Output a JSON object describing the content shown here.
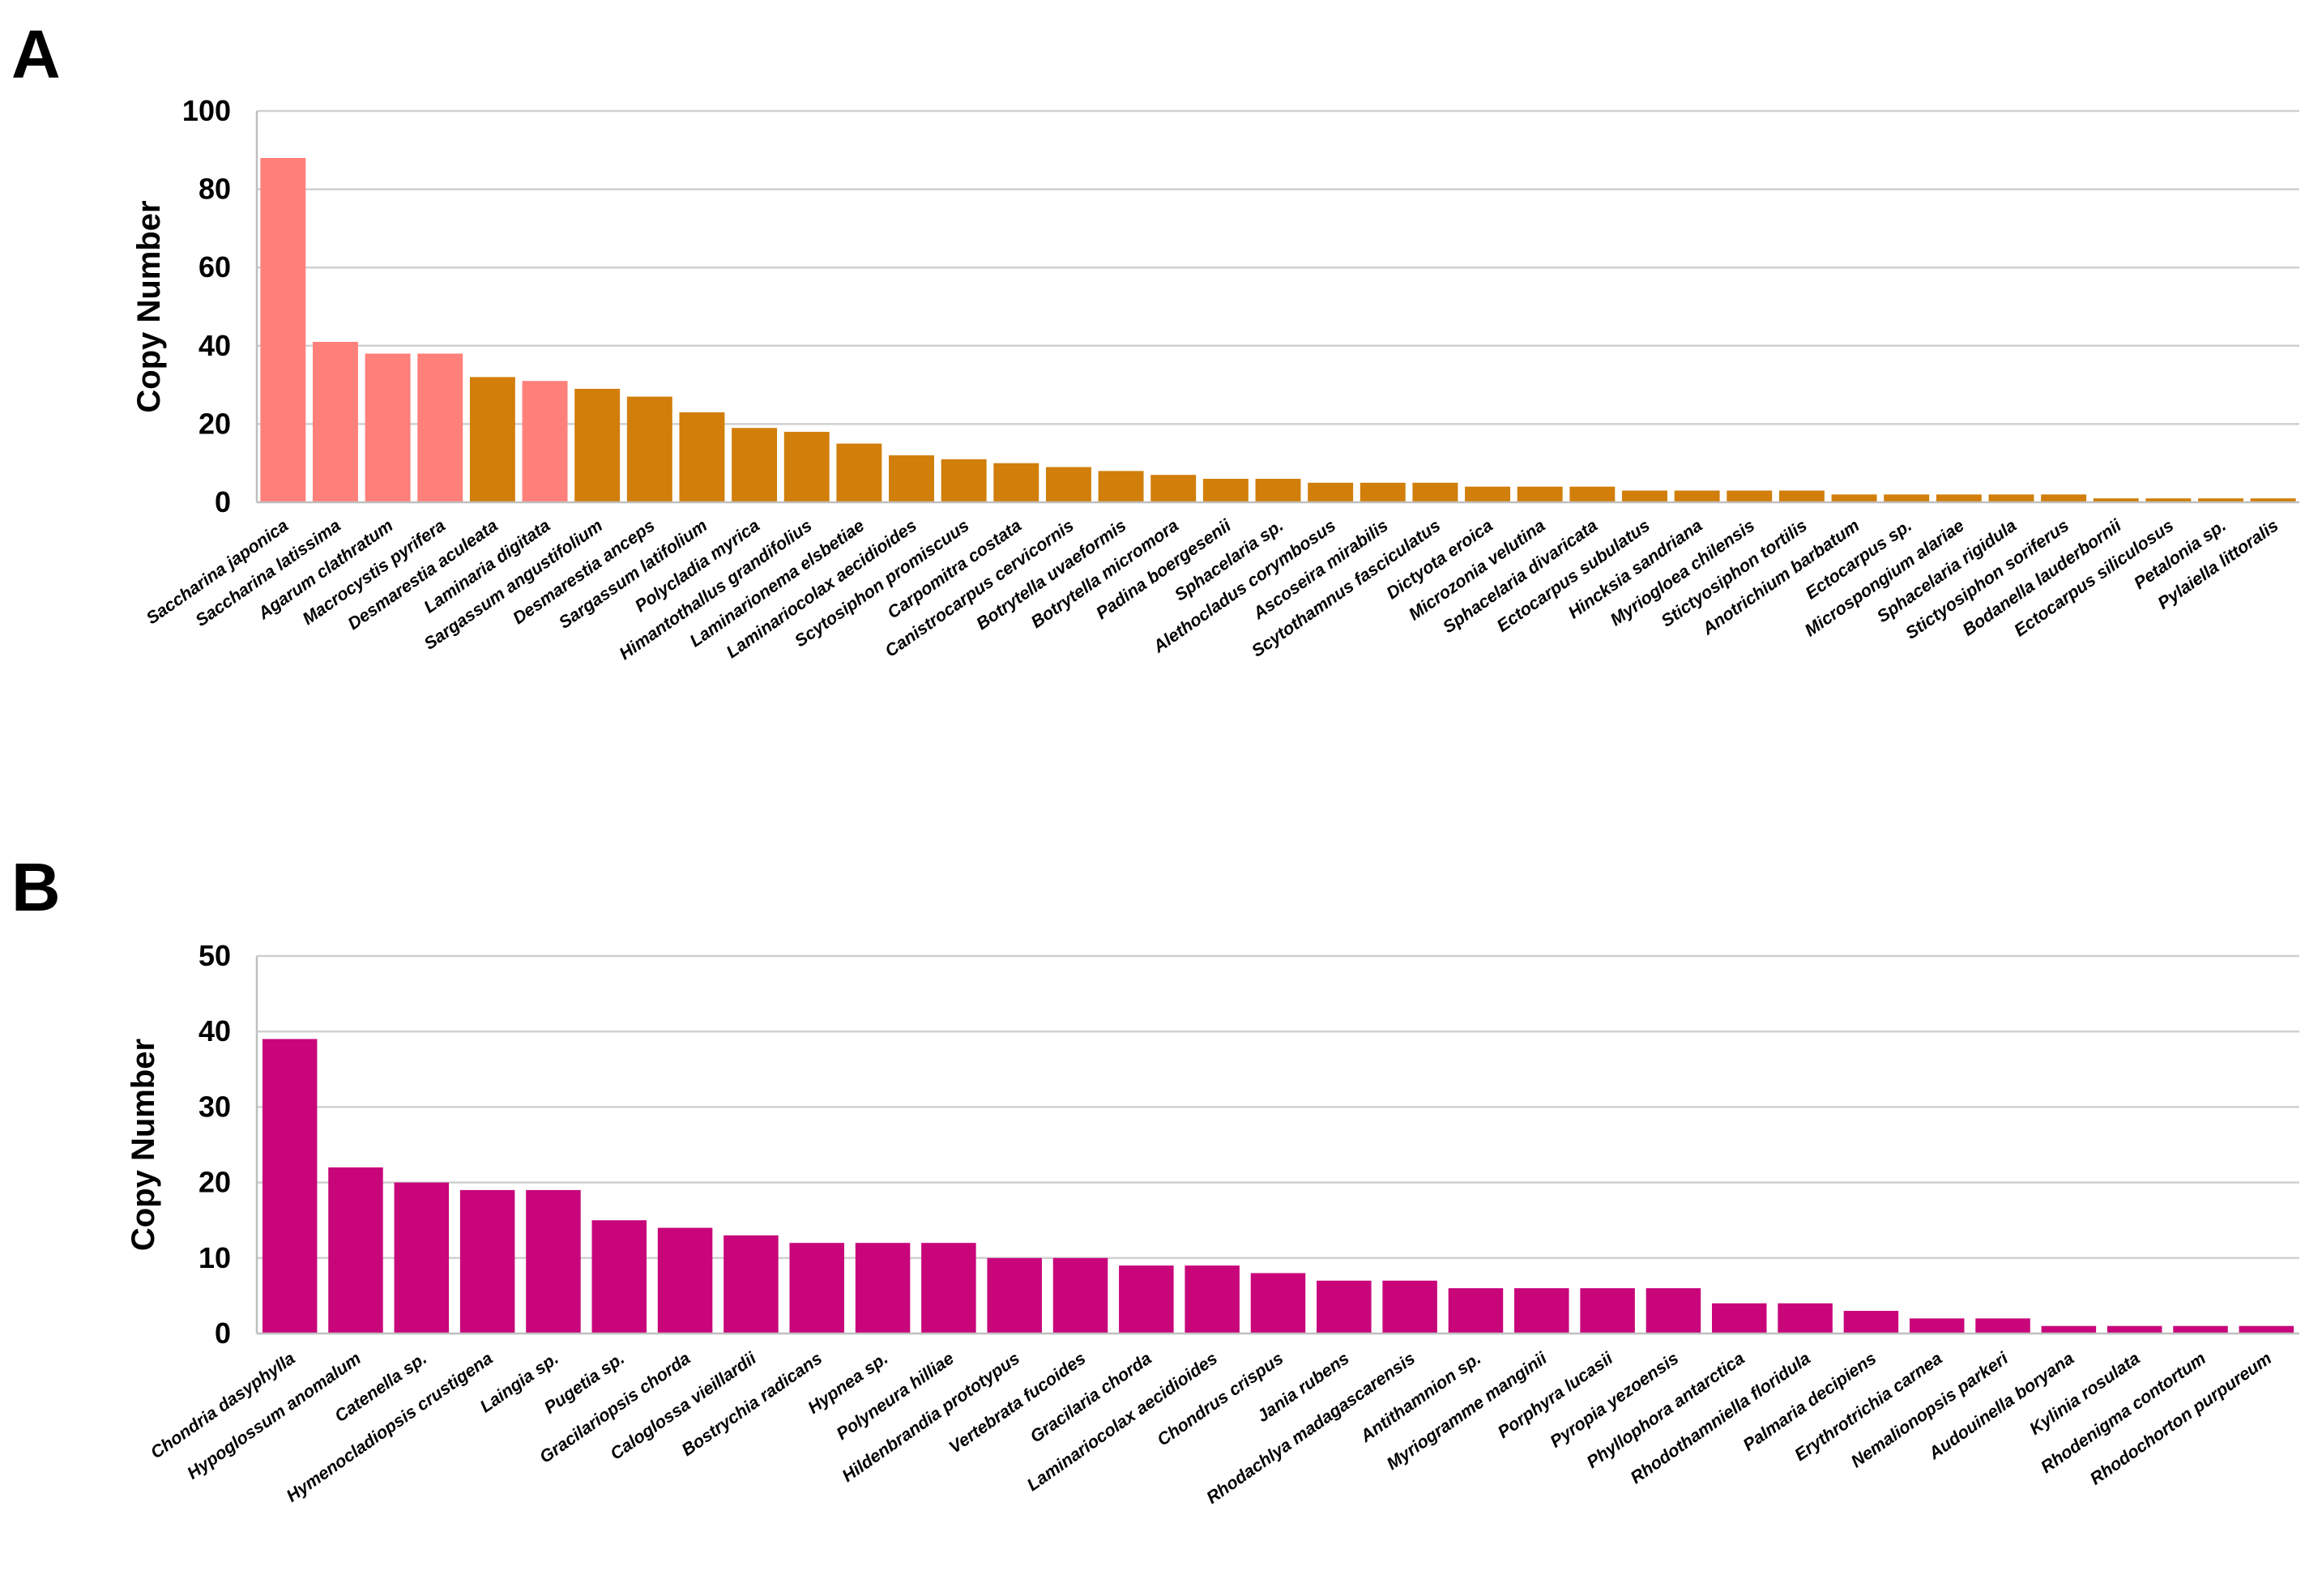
{
  "chart_data": [
    {
      "type": "bar",
      "panel_label": "A",
      "ylabel": "Copy Number",
      "ylim": [
        0,
        100
      ],
      "yticks": [
        0,
        20,
        40,
        60,
        80,
        100
      ],
      "grid": true,
      "colors": {
        "highlight": "#ff7f7a",
        "default": "#d17e0a"
      },
      "categories": [
        "Saccharina japonica",
        "Saccharina latissima",
        "Agarum clathratum",
        "Macrocystis pyrifera",
        "Desmarestia aculeata",
        "Laminaria digitata",
        "Sargassum angustifolium",
        "Desmarestia anceps",
        "Sargassum latifolium",
        "Polycladia myrica",
        "Himantothallus grandifolius",
        "Laminarionema elsbetiae",
        "Laminariocolax aecidioides",
        "Scytosiphon promiscuus",
        "Carpomitra costata",
        "Canistrocarpus cervicornis",
        "Botrytella uvaeformis",
        "Botrytella micromora",
        "Padina boergesenii",
        "Sphacelaria sp.",
        "Alethocladus corymbosus",
        "Ascoseira mirabilis",
        "Scytothamnus fasciculatus",
        "Dictyota eroica",
        "Microzonia velutina",
        "Sphacelaria divaricata",
        "Ectocarpus subulatus",
        "Hincksia sandriana",
        "Myriogloea chilensis",
        "Stictyosiphon tortilis",
        "Anotrichium barbatum",
        "Ectocarpus sp.",
        "Microspongium alariae",
        "Sphacelaria rigidula",
        "Stictyosiphon soriferus",
        "Bodanella lauderbornii",
        "Ectocarpus siliculosus",
        "Petalonia sp.",
        "Pylaiella littoralis"
      ],
      "values": [
        88,
        41,
        38,
        38,
        32,
        31,
        29,
        27,
        23,
        19,
        18,
        15,
        12,
        11,
        10,
        9,
        8,
        7,
        6,
        6,
        5,
        5,
        5,
        4,
        4,
        4,
        3,
        3,
        3,
        3,
        2,
        2,
        2,
        2,
        2,
        1,
        1,
        1,
        1
      ],
      "highlighted_indices": [
        0,
        1,
        2,
        3,
        5
      ]
    },
    {
      "type": "bar",
      "panel_label": "B",
      "ylabel": "Copy Number",
      "ylim": [
        0,
        50
      ],
      "yticks": [
        0,
        10,
        20,
        30,
        40,
        50
      ],
      "grid": true,
      "colors": {
        "default": "#c8067a"
      },
      "categories": [
        "Chondria dasyphylla",
        "Hypoglossum anomalum",
        "Catenella sp.",
        "Hymenocladiopsis crustigena",
        "Laingia sp.",
        "Pugetia sp.",
        "Gracilariopsis chorda",
        "Caloglossa vieillardii",
        "Bostrychia radicans",
        "Hypnea sp.",
        "Polyneura hilliae",
        "Hildenbrandia prototypus",
        "Vertebrata fucoides",
        "Gracilaria chorda",
        "Laminariocolax aecidioides",
        "Chondrus crispus",
        "Jania rubens",
        "Rhodachlya madagascarensis",
        "Antithamnion sp.",
        "Myriogramme manginii",
        "Porphyra lucasii",
        "Pyropia yezoensis",
        "Phyllophora antarctica",
        "Rhodothamniella floridula",
        "Palmaria decipiens",
        "Erythrotrichia carnea",
        "Nemalionopsis parkeri",
        "Audouinella boryana",
        "Kylinia rosulata",
        "Rhodenigma contortum",
        "Rhodochorton purpureum"
      ],
      "values": [
        39,
        22,
        20,
        19,
        19,
        15,
        14,
        13,
        12,
        12,
        12,
        10,
        10,
        9,
        9,
        8,
        7,
        7,
        6,
        6,
        6,
        6,
        4,
        4,
        3,
        2,
        2,
        1,
        1,
        1,
        1
      ],
      "highlighted_indices": []
    }
  ]
}
